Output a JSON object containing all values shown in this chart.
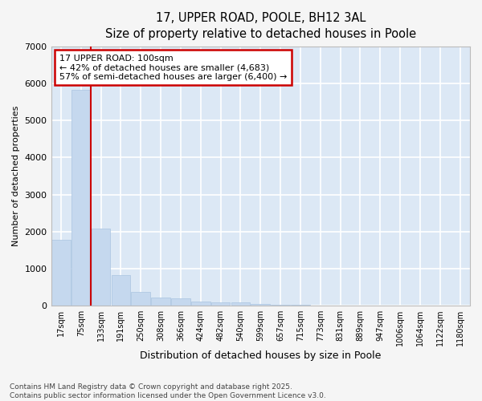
{
  "title_line1": "17, UPPER ROAD, POOLE, BH12 3AL",
  "title_line2": "Size of property relative to detached houses in Poole",
  "xlabel": "Distribution of detached houses by size in Poole",
  "ylabel": "Number of detached properties",
  "categories": [
    "17sqm",
    "75sqm",
    "133sqm",
    "191sqm",
    "250sqm",
    "308sqm",
    "366sqm",
    "424sqm",
    "482sqm",
    "540sqm",
    "599sqm",
    "657sqm",
    "715sqm",
    "773sqm",
    "831sqm",
    "889sqm",
    "947sqm",
    "1006sqm",
    "1064sqm",
    "1122sqm",
    "1180sqm"
  ],
  "values": [
    1780,
    5820,
    2080,
    820,
    360,
    210,
    195,
    110,
    90,
    80,
    55,
    30,
    15,
    0,
    0,
    0,
    0,
    0,
    0,
    0,
    0
  ],
  "bar_color": "#c5d8ee",
  "bar_edge_color": "#aac4e0",
  "vline_x": 1,
  "vline_color": "#cc0000",
  "annotation_text_line1": "17 UPPER ROAD: 100sqm",
  "annotation_text_line2": "← 42% of detached houses are smaller (4,683)",
  "annotation_text_line3": "57% of semi-detached houses are larger (6,400) →",
  "annotation_box_color": "#cc0000",
  "ylim": [
    0,
    7000
  ],
  "yticks": [
    0,
    1000,
    2000,
    3000,
    4000,
    5000,
    6000,
    7000
  ],
  "background_color": "#dce8f5",
  "plot_bg_color": "#dce8f5",
  "fig_bg_color": "#f5f5f5",
  "grid_color": "#ffffff",
  "footer_line1": "Contains HM Land Registry data © Crown copyright and database right 2025.",
  "footer_line2": "Contains public sector information licensed under the Open Government Licence v3.0."
}
